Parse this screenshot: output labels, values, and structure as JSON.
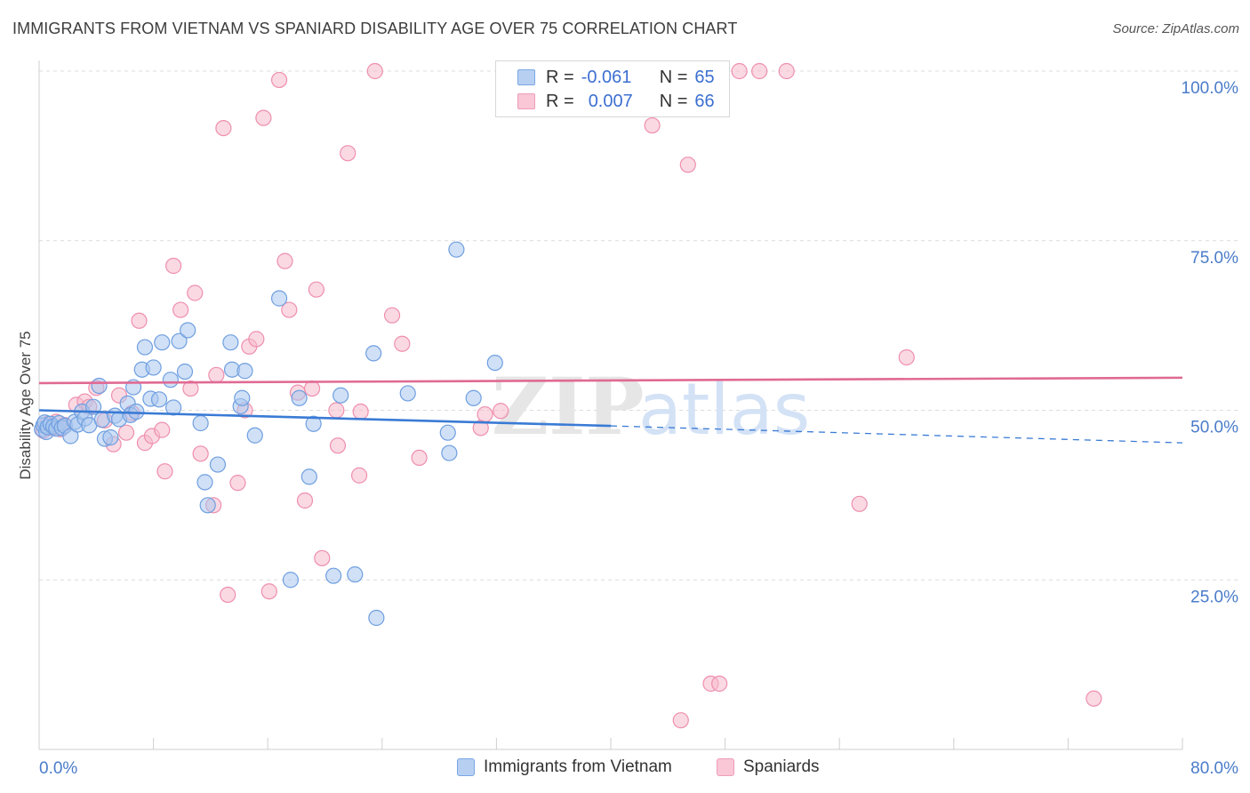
{
  "header": {
    "title": "IMMIGRANTS FROM VIETNAM VS SPANIARD DISABILITY AGE OVER 75 CORRELATION CHART",
    "source": "Source: ZipAtlas.com"
  },
  "watermark": {
    "zip": "ZIP",
    "atlas": "atlas"
  },
  "colors": {
    "blue_fill": "#a9c6ef",
    "blue_stroke": "#6f9fe0",
    "blue_line": "#3a7bd5",
    "pink_fill": "#f6b9cc",
    "pink_stroke": "#ee8fae",
    "pink_line": "#e06a93",
    "axis_text": "#4a7cc9",
    "grid": "#dcdcdc"
  },
  "legend": {
    "rows": [
      {
        "r_label": "R =",
        "r_value": "-0.061",
        "n_label": "N =",
        "n_value": "65",
        "series": "blue"
      },
      {
        "r_label": "R =",
        "r_value": "0.007",
        "n_label": "N =",
        "n_value": "66",
        "series": "pink"
      }
    ]
  },
  "bottom_legend": [
    "Immigrants from Vietnam",
    "Spaniards"
  ],
  "chart_data": {
    "type": "scatter",
    "title": "IMMIGRANTS FROM VIETNAM VS SPANIARD DISABILITY AGE OVER 75 CORRELATION CHART",
    "xlabel": "",
    "ylabel": "Disability Age Over 75",
    "xlim": [
      0,
      80
    ],
    "ylim": [
      0,
      100
    ],
    "x_tick_labels": [
      "0.0%",
      "80.0%"
    ],
    "y_tick_labels": [
      {
        "value": 100,
        "label": "100.0%"
      },
      {
        "value": 75,
        "label": "75.0%"
      },
      {
        "value": 50,
        "label": "50.0%"
      },
      {
        "value": 25,
        "label": "25.0%"
      }
    ],
    "series": [
      {
        "name": "Immigrants from Vietnam",
        "color": "blue",
        "r": -0.061,
        "n": 65,
        "trend": {
          "x0": 0,
          "y0": 50.0,
          "x1": 40,
          "y1": 47.7,
          "dashed_to_x": 80,
          "dashed_to_y": 45.2
        },
        "points": [
          [
            0.2,
            47.2
          ],
          [
            0.3,
            47.8
          ],
          [
            0.4,
            48.2
          ],
          [
            0.5,
            46.8
          ],
          [
            0.6,
            47.5
          ],
          [
            0.8,
            48.0
          ],
          [
            1.0,
            47.6
          ],
          [
            1.2,
            47.3
          ],
          [
            1.4,
            48.1
          ],
          [
            1.6,
            47.4
          ],
          [
            1.8,
            47.7
          ],
          [
            2.2,
            46.2
          ],
          [
            2.5,
            48.3
          ],
          [
            2.7,
            47.9
          ],
          [
            3.0,
            49.8
          ],
          [
            3.2,
            48.8
          ],
          [
            3.5,
            47.8
          ],
          [
            3.8,
            50.5
          ],
          [
            4.2,
            53.6
          ],
          [
            4.4,
            48.6
          ],
          [
            4.6,
            45.8
          ],
          [
            5.0,
            46.0
          ],
          [
            5.3,
            49.2
          ],
          [
            5.6,
            48.7
          ],
          [
            6.2,
            51.0
          ],
          [
            6.4,
            49.3
          ],
          [
            6.6,
            53.4
          ],
          [
            6.8,
            49.8
          ],
          [
            7.2,
            56.0
          ],
          [
            7.4,
            59.3
          ],
          [
            7.8,
            51.7
          ],
          [
            8.0,
            56.3
          ],
          [
            8.4,
            51.6
          ],
          [
            8.6,
            60.0
          ],
          [
            9.2,
            54.5
          ],
          [
            9.4,
            50.4
          ],
          [
            9.8,
            60.2
          ],
          [
            10.2,
            55.7
          ],
          [
            10.4,
            61.8
          ],
          [
            11.3,
            48.1
          ],
          [
            11.6,
            39.4
          ],
          [
            11.8,
            36.0
          ],
          [
            12.5,
            42.0
          ],
          [
            13.4,
            60.0
          ],
          [
            13.5,
            56.0
          ],
          [
            14.1,
            50.6
          ],
          [
            14.2,
            51.8
          ],
          [
            14.4,
            55.8
          ],
          [
            15.1,
            46.3
          ],
          [
            16.8,
            66.5
          ],
          [
            17.6,
            25.0
          ],
          [
            18.2,
            51.8
          ],
          [
            18.9,
            40.2
          ],
          [
            19.2,
            48.0
          ],
          [
            21.1,
            52.2
          ],
          [
            22.1,
            25.8
          ],
          [
            23.4,
            58.4
          ],
          [
            23.6,
            19.4
          ],
          [
            25.8,
            52.5
          ],
          [
            28.6,
            46.7
          ],
          [
            28.7,
            43.7
          ],
          [
            29.2,
            73.7
          ],
          [
            30.4,
            51.8
          ],
          [
            31.9,
            57.0
          ],
          [
            20.6,
            25.6
          ]
        ]
      },
      {
        "name": "Spaniards",
        "color": "pink",
        "r": 0.007,
        "n": 66,
        "trend": {
          "x0": 0,
          "y0": 54.0,
          "x1": 80,
          "y1": 54.8
        },
        "points": [
          [
            0.3,
            47.0
          ],
          [
            0.6,
            48.0
          ],
          [
            0.9,
            47.4
          ],
          [
            1.2,
            48.3
          ],
          [
            1.5,
            47.2
          ],
          [
            1.8,
            47.8
          ],
          [
            2.6,
            50.8
          ],
          [
            3.2,
            51.3
          ],
          [
            3.5,
            50.5
          ],
          [
            4.0,
            53.3
          ],
          [
            4.6,
            48.5
          ],
          [
            5.2,
            45.0
          ],
          [
            5.6,
            52.2
          ],
          [
            6.1,
            46.7
          ],
          [
            6.5,
            49.6
          ],
          [
            7.0,
            63.2
          ],
          [
            7.4,
            45.2
          ],
          [
            7.9,
            46.2
          ],
          [
            8.6,
            47.1
          ],
          [
            8.8,
            41.0
          ],
          [
            9.4,
            71.3
          ],
          [
            9.9,
            64.8
          ],
          [
            10.6,
            53.2
          ],
          [
            10.9,
            67.3
          ],
          [
            11.3,
            43.6
          ],
          [
            12.2,
            36.0
          ],
          [
            12.4,
            55.2
          ],
          [
            12.9,
            91.6
          ],
          [
            13.2,
            22.8
          ],
          [
            13.9,
            39.3
          ],
          [
            14.4,
            50.0
          ],
          [
            14.7,
            59.4
          ],
          [
            15.2,
            60.5
          ],
          [
            15.7,
            93.1
          ],
          [
            16.1,
            23.3
          ],
          [
            16.8,
            98.7
          ],
          [
            17.2,
            72.0
          ],
          [
            17.5,
            64.8
          ],
          [
            18.1,
            52.6
          ],
          [
            18.6,
            36.7
          ],
          [
            19.1,
            53.2
          ],
          [
            19.4,
            67.8
          ],
          [
            19.8,
            28.2
          ],
          [
            20.8,
            50.0
          ],
          [
            20.9,
            44.8
          ],
          [
            21.6,
            87.9
          ],
          [
            22.4,
            40.4
          ],
          [
            22.5,
            49.8
          ],
          [
            23.5,
            100.0
          ],
          [
            24.7,
            64.0
          ],
          [
            25.4,
            59.8
          ],
          [
            26.6,
            43.0
          ],
          [
            30.9,
            47.4
          ],
          [
            31.2,
            49.4
          ],
          [
            32.3,
            49.9
          ],
          [
            42.9,
            92.0
          ],
          [
            44.9,
            4.3
          ],
          [
            45.4,
            86.2
          ],
          [
            47.0,
            9.7
          ],
          [
            47.6,
            9.7
          ],
          [
            49.0,
            100.0
          ],
          [
            50.4,
            100.0
          ],
          [
            52.3,
            100.0
          ],
          [
            57.4,
            36.2
          ],
          [
            60.7,
            57.8
          ],
          [
            73.8,
            7.5
          ]
        ]
      }
    ]
  }
}
